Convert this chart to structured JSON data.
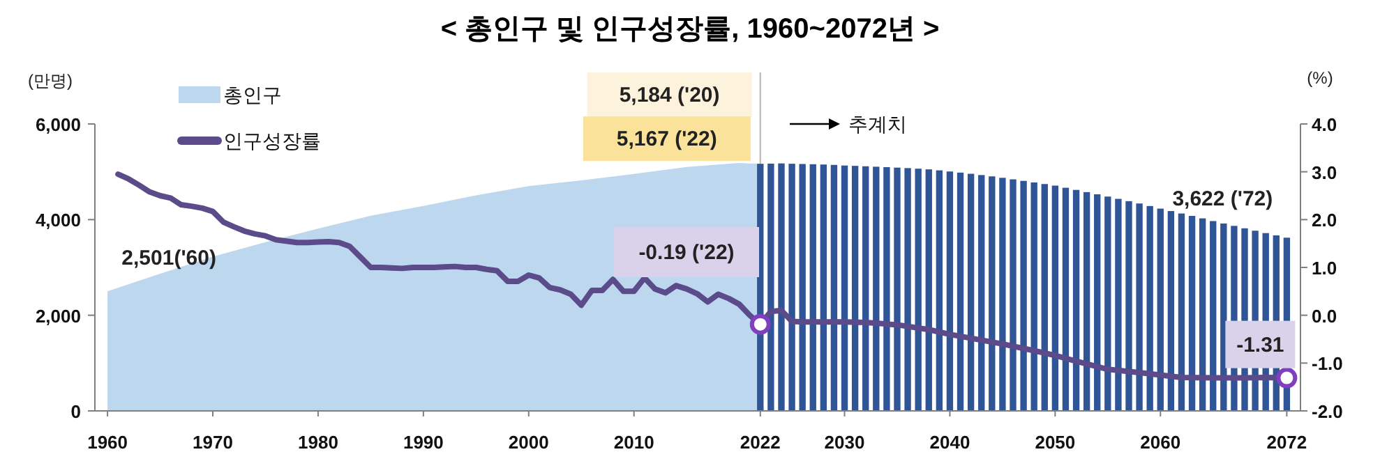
{
  "chart_data": {
    "type": "bar",
    "title": "< 총인구 및 인구성장률, 1960~2072년 >",
    "ylabel": "(만명)",
    "y2label": "(%)",
    "xlim": [
      1958.8,
      2073.3
    ],
    "ylim": [
      0,
      6000
    ],
    "y2lim": [
      -2,
      4
    ],
    "xticks": [
      1960,
      1970,
      1980,
      1990,
      2000,
      2010,
      2022,
      2030,
      2040,
      2050,
      2060,
      2072
    ],
    "yticks": [
      0,
      {
        "value": 2000,
        "label": "2,000"
      },
      {
        "value": 4000,
        "label": "4,000"
      },
      {
        "value": 6000,
        "label": "6,000"
      }
    ],
    "y2ticks": [
      {
        "value": -2,
        "label": "-2.0"
      },
      {
        "value": -1,
        "label": "-1.0"
      },
      {
        "value": 0,
        "label": "0.0"
      },
      {
        "value": 1,
        "label": "1.0"
      },
      {
        "value": 2,
        "label": "2.0"
      },
      {
        "value": 3,
        "label": "3.0"
      },
      {
        "value": 4,
        "label": "4.0"
      }
    ],
    "legend": "top left",
    "ref_lines": [
      {
        "axis": "x",
        "value": 2022,
        "color": "#bfbfbf"
      }
    ],
    "series": [
      {
        "name": "총인구",
        "type": "area",
        "color": "#bdd7ee",
        "x": [
          1960,
          1965,
          1970,
          1975,
          1980,
          1985,
          1990,
          1995,
          2000,
          2005,
          2010,
          2015,
          2020,
          2021,
          2022
        ],
        "values": [
          2501,
          2870,
          3224,
          3528,
          3812,
          4081,
          4287,
          4509,
          4701,
          4819,
          4955,
          5101,
          5184,
          5174,
          5167
        ]
      },
      {
        "type": "bar",
        "color": "#2f5597",
        "x": [
          2022,
          2023,
          2024,
          2025,
          2026,
          2027,
          2028,
          2029,
          2030,
          2031,
          2032,
          2033,
          2034,
          2035,
          2036,
          2037,
          2038,
          2039,
          2040,
          2041,
          2042,
          2043,
          2044,
          2045,
          2046,
          2047,
          2048,
          2049,
          2050,
          2051,
          2052,
          2053,
          2054,
          2055,
          2056,
          2057,
          2058,
          2059,
          2060,
          2061,
          2062,
          2063,
          2064,
          2065,
          2066,
          2067,
          2068,
          2069,
          2070,
          2071,
          2072
        ],
        "values": [
          5167,
          5171,
          5175,
          5168,
          5163,
          5158,
          5152,
          5144,
          5131,
          5124,
          5115,
          5106,
          5097,
          5087,
          5077,
          5065,
          5051,
          5030,
          5006,
          4983,
          4958,
          4932,
          4904,
          4874,
          4842,
          4810,
          4777,
          4744,
          4711,
          4666,
          4621,
          4575,
          4529,
          4482,
          4434,
          4386,
          4337,
          4284,
          4230,
          4179,
          4128,
          4077,
          4026,
          3969,
          3919,
          3869,
          3818,
          3768,
          3718,
          3670,
          3622
        ]
      },
      {
        "name": "인구성장률",
        "type": "line",
        "axis": "y2",
        "color": "#5b4b8a",
        "x": [
          1961,
          1962,
          1963,
          1964,
          1965,
          1966,
          1967,
          1968,
          1969,
          1970,
          1971,
          1972,
          1973,
          1974,
          1975,
          1976,
          1977,
          1978,
          1979,
          1980,
          1981,
          1982,
          1983,
          1984,
          1985,
          1986,
          1987,
          1988,
          1989,
          1990,
          1991,
          1992,
          1993,
          1994,
          1995,
          1996,
          1997,
          1998,
          1999,
          2000,
          2001,
          2002,
          2003,
          2004,
          2005,
          2006,
          2007,
          2008,
          2009,
          2010,
          2011,
          2012,
          2013,
          2014,
          2015,
          2016,
          2017,
          2018,
          2019,
          2020,
          2021,
          2022,
          2023,
          2024,
          2025,
          2026,
          2028,
          2030,
          2032,
          2035,
          2038,
          2040,
          2042,
          2045,
          2048,
          2050,
          2052,
          2055,
          2058,
          2060,
          2062,
          2065,
          2068,
          2070,
          2072
        ],
        "values": [
          2.95,
          2.85,
          2.72,
          2.58,
          2.5,
          2.45,
          2.31,
          2.28,
          2.24,
          2.17,
          1.95,
          1.85,
          1.76,
          1.7,
          1.66,
          1.58,
          1.55,
          1.52,
          1.52,
          1.53,
          1.54,
          1.52,
          1.44,
          1.22,
          1.0,
          1.0,
          0.99,
          0.98,
          1.0,
          1.0,
          1.0,
          1.01,
          1.02,
          1.0,
          1.0,
          0.96,
          0.93,
          0.71,
          0.71,
          0.84,
          0.78,
          0.58,
          0.53,
          0.44,
          0.21,
          0.52,
          0.52,
          0.75,
          0.5,
          0.5,
          0.78,
          0.55,
          0.47,
          0.62,
          0.55,
          0.45,
          0.28,
          0.44,
          0.35,
          0.23,
          0.0,
          -0.19,
          0.08,
          0.1,
          -0.13,
          -0.14,
          -0.14,
          -0.14,
          -0.15,
          -0.2,
          -0.3,
          -0.4,
          -0.48,
          -0.6,
          -0.74,
          -0.84,
          -0.96,
          -1.13,
          -1.2,
          -1.25,
          -1.3,
          -1.31,
          -1.31,
          -1.3,
          -1.31
        ]
      },
      {
        "type": "scatter",
        "axis": "y2",
        "marker": "circle",
        "color": "#7f3fbf",
        "x": [
          2022,
          2072
        ],
        "values": [
          -0.19,
          -1.31
        ]
      }
    ],
    "annotations": [
      {
        "text": "2,501('60)",
        "x": 1960,
        "y": 2501
      },
      {
        "text": "5,184 ('20)",
        "x": 2020,
        "y": 5184
      },
      {
        "text": "5,167 ('22)",
        "x": 2022,
        "y": 5167
      },
      "-0.19 ('22)",
      {
        "text": "-1.31",
        "x": 2072,
        "y": -1.31
      },
      {
        "text": "3,622 ('72)",
        "x": 2072,
        "y": 3622
      },
      "추계치"
    ]
  }
}
